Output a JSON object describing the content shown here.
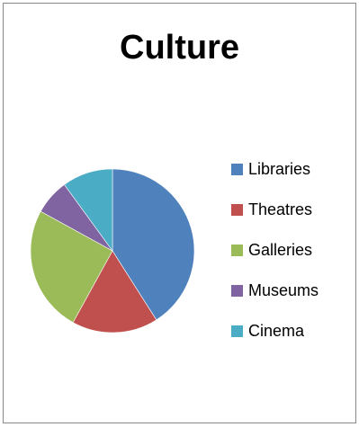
{
  "chart_data": {
    "type": "pie",
    "title": "Culture",
    "categories": [
      "Libraries",
      "Theatres",
      "Galleries",
      "Museums",
      "Cinema"
    ],
    "values": [
      41,
      17,
      25,
      7,
      10
    ],
    "colors": [
      "#4f81bd",
      "#c0504d",
      "#9bbb59",
      "#8064a2",
      "#4bacc6"
    ],
    "legend_position": "right",
    "start_angle_deg": 0,
    "direction": "clockwise"
  }
}
